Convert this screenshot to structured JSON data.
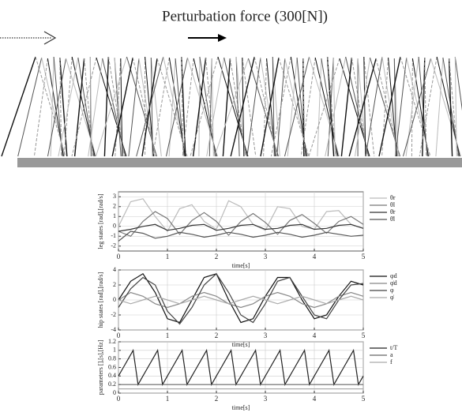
{
  "header": {
    "title": "Perturbation force (300[N])"
  },
  "chart_data": [
    {
      "type": "line",
      "ylabel": "leg states [rad],[rad/s]",
      "xlabel": "time[s]",
      "x": [
        0,
        0.25,
        0.5,
        0.75,
        1,
        1.25,
        1.5,
        1.75,
        2,
        2.25,
        2.5,
        2.75,
        3,
        3.25,
        3.5,
        3.75,
        4,
        4.25,
        4.5,
        4.75,
        5
      ],
      "xlim": [
        0,
        5
      ],
      "xticks": [
        0,
        1,
        2,
        3,
        4,
        5
      ],
      "ylim": [
        -2.5,
        3.5
      ],
      "yticks": [
        -2,
        -1,
        0,
        1,
        2,
        3
      ],
      "grid": true,
      "series": [
        {
          "name": "θr",
          "color": "#bbbbbb",
          "values": [
            0,
            2.5,
            2.8,
            1.0,
            -0.5,
            1.8,
            2.2,
            0.5,
            -0.3,
            2.6,
            2.0,
            0.2,
            -0.4,
            2.0,
            1.8,
            0.0,
            -0.3,
            1.5,
            1.6,
            0.2,
            -0.2
          ]
        },
        {
          "name": "θl",
          "color": "#777777",
          "values": [
            -0.5,
            -1.0,
            0.5,
            1.5,
            0.8,
            -0.8,
            0.6,
            1.4,
            0.5,
            -0.9,
            0.5,
            1.3,
            0.4,
            -0.8,
            0.6,
            1.2,
            0.3,
            -0.7,
            0.5,
            1.0,
            0.2
          ]
        },
        {
          "name": "θ̇r",
          "color": "#333333",
          "values": [
            -0.5,
            -0.3,
            0.0,
            0.2,
            -0.4,
            -0.2,
            0.1,
            0.2,
            -0.4,
            -0.2,
            0.1,
            0.2,
            -0.3,
            -0.2,
            0.1,
            0.2,
            -0.3,
            -0.2,
            0.1,
            0.2,
            -0.2
          ]
        },
        {
          "name": "θ̇l",
          "color": "#555555",
          "values": [
            -1.5,
            -0.5,
            -0.7,
            -1.2,
            -1.0,
            -0.6,
            -0.8,
            -1.1,
            -0.9,
            -0.6,
            -0.8,
            -1.1,
            -0.9,
            -0.6,
            -0.8,
            -1.1,
            -0.9,
            -0.6,
            -0.8,
            -1.0,
            -0.9
          ]
        }
      ]
    },
    {
      "type": "line",
      "ylabel": "hip states [rad],[rad/s]",
      "xlabel": "time[s]",
      "x": [
        0,
        0.25,
        0.5,
        0.75,
        1,
        1.25,
        1.5,
        1.75,
        2,
        2.25,
        2.5,
        2.75,
        3,
        3.25,
        3.5,
        3.75,
        4,
        4.25,
        4.5,
        4.75,
        5
      ],
      "xlim": [
        0,
        5
      ],
      "xticks": [
        0,
        1,
        2,
        3,
        4,
        5
      ],
      "ylim": [
        -4,
        4
      ],
      "yticks": [
        -4,
        -2,
        0,
        2,
        4
      ],
      "grid": true,
      "series": [
        {
          "name": "φd",
          "color": "#111111",
          "values": [
            0,
            2.5,
            3.5,
            1,
            -2.5,
            -3,
            0,
            3,
            3.5,
            0,
            -3,
            -2.5,
            0.5,
            3,
            3,
            0,
            -2.5,
            -2,
            0.5,
            2.5,
            2
          ]
        },
        {
          "name": "φ̇d",
          "color": "#888888",
          "values": [
            0,
            1,
            0.5,
            -0.5,
            -1,
            -0.5,
            0.5,
            1,
            0.5,
            -0.5,
            -1,
            -0.5,
            0.5,
            1,
            0.5,
            -0.5,
            -1,
            -0.5,
            0.5,
            1,
            0.5
          ]
        },
        {
          "name": "φ",
          "color": "#444444",
          "values": [
            -1,
            1.5,
            3,
            2,
            -1.5,
            -3.2,
            -1,
            2,
            3.5,
            1,
            -2,
            -3,
            -0.5,
            2.5,
            3,
            0.5,
            -2,
            -2.5,
            0,
            2,
            2.2
          ]
        },
        {
          "name": "φ̇",
          "color": "#aaaaaa",
          "values": [
            0,
            -0.5,
            0,
            0.5,
            0,
            -0.5,
            0,
            0.5,
            0,
            -0.5,
            0,
            0.5,
            0,
            -0.5,
            0,
            0.5,
            0,
            -0.5,
            0,
            0.5,
            0
          ]
        }
      ]
    },
    {
      "type": "line",
      "ylabel": "parameters [],[s],[Hz]",
      "xlabel": "time[s]",
      "x": [
        0,
        0.1,
        0.2,
        0.3,
        0.4,
        0.5,
        0.6,
        0.7,
        0.8,
        0.9,
        1,
        1.1,
        1.2,
        1.3,
        1.4,
        1.5,
        1.6,
        1.7,
        1.8,
        1.9,
        2,
        2.1,
        2.2,
        2.3,
        2.4,
        2.5,
        2.6,
        2.7,
        2.8,
        2.9,
        3,
        3.1,
        3.2,
        3.3,
        3.4,
        3.5,
        3.6,
        3.7,
        3.8,
        3.9,
        4,
        4.1,
        4.2,
        4.3,
        4.4,
        4.5,
        4.6,
        4.7,
        4.8,
        4.9,
        5
      ],
      "xlim": [
        0,
        5
      ],
      "xticks": [
        0,
        1,
        2,
        3,
        4,
        5
      ],
      "ylim": [
        0,
        1.2
      ],
      "yticks": [
        0,
        0.2,
        0.4,
        0.6,
        0.8,
        1,
        1.2
      ],
      "grid": true,
      "series": [
        {
          "name": "t/T",
          "color": "#222222",
          "values": [
            0.4,
            0.6,
            0.8,
            1.0,
            0.2,
            0.4,
            0.6,
            0.8,
            1.0,
            0.2,
            0.4,
            0.6,
            0.8,
            1.0,
            0.2,
            0.4,
            0.6,
            0.8,
            1.0,
            0.2,
            0.4,
            0.6,
            0.8,
            1.0,
            0.2,
            0.4,
            0.6,
            0.8,
            1.0,
            0.2,
            0.4,
            0.6,
            0.8,
            1.0,
            0.2,
            0.4,
            0.6,
            0.8,
            1.0,
            0.2,
            0.4,
            0.6,
            0.8,
            1.0,
            0.2,
            0.4,
            0.6,
            0.8,
            1.0,
            0.2,
            0.4
          ]
        },
        {
          "name": "a",
          "color": "#666666",
          "values": [
            0.2,
            0.2,
            0.2,
            0.2,
            0.2,
            0.2,
            0.2,
            0.2,
            0.2,
            0.2,
            0.2,
            0.2,
            0.2,
            0.2,
            0.2,
            0.2,
            0.2,
            0.2,
            0.2,
            0.2,
            0.2,
            0.2,
            0.2,
            0.2,
            0.2,
            0.2,
            0.2,
            0.2,
            0.2,
            0.2,
            0.2,
            0.2,
            0.2,
            0.2,
            0.2,
            0.2,
            0.2,
            0.2,
            0.2,
            0.2,
            0.2,
            0.2,
            0.2,
            0.2,
            0.2,
            0.2,
            0.2,
            0.2,
            0.2,
            0.2,
            0.2
          ]
        },
        {
          "name": "f",
          "color": "#aaaaaa",
          "values": [
            0.1,
            0.1,
            0.1,
            0.1,
            0.1,
            0.1,
            0.1,
            0.1,
            0.1,
            0.1,
            0.1,
            0.1,
            0.1,
            0.1,
            0.1,
            0.1,
            0.1,
            0.1,
            0.1,
            0.1,
            0.1,
            0.1,
            0.1,
            0.1,
            0.1,
            0.1,
            0.1,
            0.1,
            0.1,
            0.1,
            0.1,
            0.1,
            0.1,
            0.1,
            0.1,
            0.1,
            0.1,
            0.1,
            0.1,
            0.1,
            0.1,
            0.1,
            0.1,
            0.1,
            0.1,
            0.1,
            0.1,
            0.1,
            0.1,
            0.1,
            0.1
          ]
        }
      ]
    }
  ]
}
